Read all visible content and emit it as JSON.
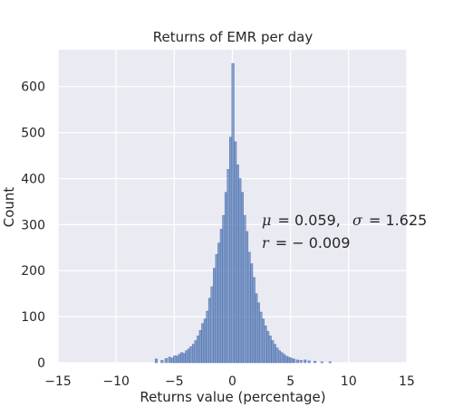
{
  "chart_data": {
    "type": "bar",
    "title": "Returns of EMR per day",
    "xlabel": "Returns value (percentage)",
    "ylabel": "Count",
    "xlim": [
      -15,
      15
    ],
    "ylim": [
      0,
      680
    ],
    "xticks": [
      -15,
      -10,
      -5,
      0,
      5,
      10,
      15
    ],
    "yticks": [
      0,
      100,
      200,
      300,
      400,
      500,
      600
    ],
    "grid": true,
    "bar_color": "#4c72b0",
    "face_color": "#eaeaf2",
    "annotations": [
      {
        "mu_label": "μ",
        "mu_value": "= 0.059,",
        "sigma_label": "σ",
        "sigma_value": "= 1.625"
      },
      {
        "r_label": "r",
        "r_value": "= − 0.009"
      }
    ],
    "bins": [
      {
        "x": -6.55,
        "count": 8
      },
      {
        "x": -6.05,
        "count": 5
      },
      {
        "x": -5.7,
        "count": 9
      },
      {
        "x": -5.4,
        "count": 12
      },
      {
        "x": -5.15,
        "count": 10
      },
      {
        "x": -4.95,
        "count": 15
      },
      {
        "x": -4.75,
        "count": 14
      },
      {
        "x": -4.55,
        "count": 18
      },
      {
        "x": -4.35,
        "count": 22
      },
      {
        "x": -4.15,
        "count": 20
      },
      {
        "x": -3.95,
        "count": 26
      },
      {
        "x": -3.75,
        "count": 30
      },
      {
        "x": -3.55,
        "count": 35
      },
      {
        "x": -3.35,
        "count": 40
      },
      {
        "x": -3.15,
        "count": 48
      },
      {
        "x": -2.95,
        "count": 58
      },
      {
        "x": -2.75,
        "count": 70
      },
      {
        "x": -2.55,
        "count": 85
      },
      {
        "x": -2.35,
        "count": 95
      },
      {
        "x": -2.15,
        "count": 112
      },
      {
        "x": -1.95,
        "count": 140
      },
      {
        "x": -1.75,
        "count": 165
      },
      {
        "x": -1.55,
        "count": 205
      },
      {
        "x": -1.35,
        "count": 235
      },
      {
        "x": -1.15,
        "count": 260
      },
      {
        "x": -0.95,
        "count": 290
      },
      {
        "x": -0.75,
        "count": 320
      },
      {
        "x": -0.55,
        "count": 370
      },
      {
        "x": -0.35,
        "count": 420
      },
      {
        "x": -0.15,
        "count": 490
      },
      {
        "x": 0.05,
        "count": 650
      },
      {
        "x": 0.25,
        "count": 480
      },
      {
        "x": 0.45,
        "count": 430
      },
      {
        "x": 0.65,
        "count": 400
      },
      {
        "x": 0.85,
        "count": 370
      },
      {
        "x": 1.05,
        "count": 320
      },
      {
        "x": 1.25,
        "count": 285
      },
      {
        "x": 1.45,
        "count": 240
      },
      {
        "x": 1.65,
        "count": 215
      },
      {
        "x": 1.85,
        "count": 185
      },
      {
        "x": 2.05,
        "count": 150
      },
      {
        "x": 2.25,
        "count": 130
      },
      {
        "x": 2.45,
        "count": 110
      },
      {
        "x": 2.65,
        "count": 95
      },
      {
        "x": 2.85,
        "count": 80
      },
      {
        "x": 3.05,
        "count": 68
      },
      {
        "x": 3.25,
        "count": 58
      },
      {
        "x": 3.45,
        "count": 48
      },
      {
        "x": 3.65,
        "count": 40
      },
      {
        "x": 3.85,
        "count": 32
      },
      {
        "x": 4.05,
        "count": 26
      },
      {
        "x": 4.25,
        "count": 22
      },
      {
        "x": 4.45,
        "count": 18
      },
      {
        "x": 4.65,
        "count": 14
      },
      {
        "x": 4.85,
        "count": 12
      },
      {
        "x": 5.05,
        "count": 10
      },
      {
        "x": 5.3,
        "count": 8
      },
      {
        "x": 5.6,
        "count": 6
      },
      {
        "x": 5.9,
        "count": 5
      },
      {
        "x": 6.25,
        "count": 6
      },
      {
        "x": 6.6,
        "count": 4
      },
      {
        "x": 7.1,
        "count": 3
      },
      {
        "x": 7.7,
        "count": 2
      },
      {
        "x": 8.4,
        "count": 2
      }
    ]
  }
}
